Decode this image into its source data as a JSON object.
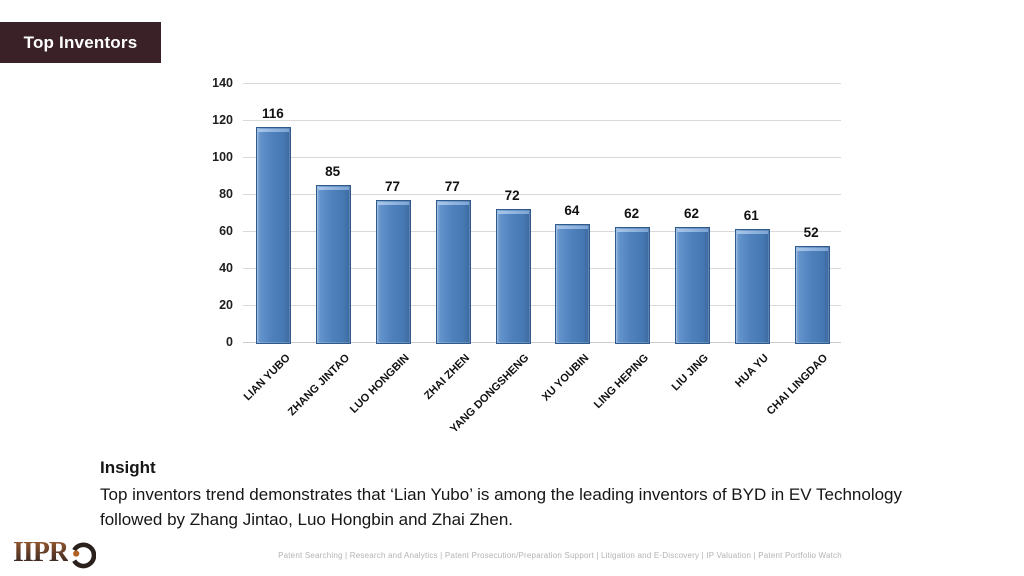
{
  "slide": {
    "title": "Top Inventors",
    "insight_heading": "Insight",
    "insight_text": "Top inventors trend demonstrates that ‘Lian Yubo’ is among the leading inventors of BYD in EV Technology followed by Zhang Jintao, Luo Hongbin and Zhai Zhen.",
    "footer": "Patent Searching | Research and Analytics | Patent Prosecution/Preparation Support | Litigation and E-Discovery | IP Valuation | Patent Portfolio Watch",
    "logo_text": "IIPR",
    "logo_icon": "eye-ring-icon"
  },
  "colors": {
    "header_bg": "#3a2127",
    "header_text": "#ffffff",
    "bar_fill": "#4f81bd",
    "bar_border": "#2f5a8c",
    "gridline": "#d9d9d9",
    "label_text": "#111111",
    "footer_text": "#b3b3b3",
    "logo_dot": "#b26220"
  },
  "chart_data": {
    "type": "bar",
    "categories": [
      "LIAN YUBO",
      "ZHANG JINTAO",
      "LUO HONGBIN",
      "ZHAI ZHEN",
      "YANG DONGSHENG",
      "XU YOUBIN",
      "LING HEPING",
      "LIU JING",
      "HUA YU",
      "CHAI LINGDAO"
    ],
    "values": [
      116,
      85,
      77,
      77,
      72,
      64,
      62,
      62,
      61,
      52
    ],
    "title": "",
    "xlabel": "",
    "ylabel": "",
    "ylim": [
      0,
      140
    ],
    "yticks": [
      0,
      20,
      40,
      60,
      80,
      100,
      120,
      140
    ],
    "grid": true,
    "legend": false,
    "data_labels": true,
    "x_label_rotation": 45
  }
}
